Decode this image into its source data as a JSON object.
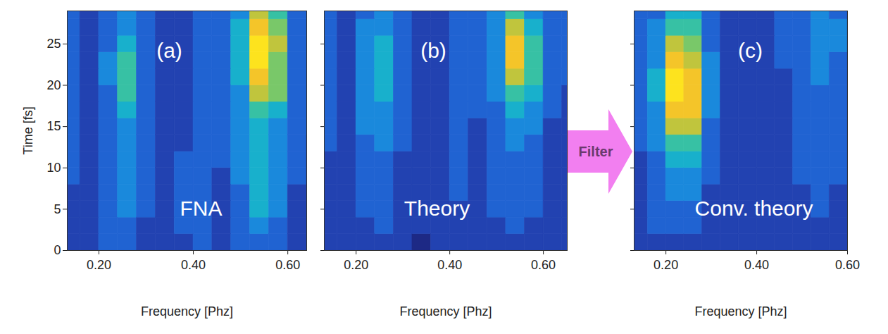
{
  "arrow_label": "Filter",
  "chart_data": [
    {
      "type": "heatmap",
      "panel_label": "(a)",
      "title": "FNA",
      "x_label": "Frequency [Phz]",
      "y_label": "Time [fs]",
      "xlim": [
        0.133,
        0.64
      ],
      "ylim": [
        0,
        29
      ],
      "xticks": [
        0.2,
        0.4,
        0.6
      ],
      "yticks": [
        0,
        5,
        10,
        15,
        20,
        25
      ],
      "tick_labels": true,
      "color_range": [
        0,
        10
      ],
      "x_edges": [
        0.12,
        0.16,
        0.2,
        0.24,
        0.28,
        0.32,
        0.36,
        0.4,
        0.44,
        0.48,
        0.52,
        0.56,
        0.6,
        0.64,
        0.68
      ],
      "y_edges": [
        0,
        2,
        4,
        6,
        8,
        10,
        12,
        14,
        16,
        18,
        20,
        22,
        24,
        26,
        28,
        30
      ],
      "cells": [
        [
          2,
          2,
          3,
          3,
          2,
          2,
          2,
          3,
          2,
          3,
          3,
          3,
          2,
          2
        ],
        [
          2,
          2,
          3,
          3,
          2,
          2,
          3,
          3,
          2,
          3,
          4,
          3,
          2,
          2
        ],
        [
          2,
          2,
          3,
          4,
          3,
          2,
          3,
          3,
          2,
          3,
          5,
          4,
          2,
          2
        ],
        [
          2,
          2,
          3,
          4,
          3,
          2,
          3,
          3,
          2,
          3,
          5,
          4,
          2,
          2
        ],
        [
          3,
          2,
          3,
          4,
          3,
          2,
          3,
          3,
          2,
          4,
          5,
          4,
          3,
          2
        ],
        [
          3,
          2,
          3,
          4,
          3,
          2,
          3,
          3,
          3,
          4,
          5,
          4,
          3,
          2
        ],
        [
          3,
          2,
          3,
          4,
          3,
          2,
          2,
          3,
          3,
          4,
          5,
          4,
          3,
          2
        ],
        [
          3,
          2,
          3,
          4,
          3,
          2,
          2,
          3,
          3,
          4,
          5,
          4,
          3,
          3
        ],
        [
          3,
          2,
          3,
          5,
          3,
          2,
          2,
          3,
          3,
          4,
          6,
          5,
          3,
          3
        ],
        [
          3,
          2,
          3,
          6,
          3,
          2,
          2,
          3,
          3,
          4,
          8,
          7,
          3,
          3
        ],
        [
          3,
          2,
          4,
          6,
          3,
          2,
          2,
          3,
          3,
          5,
          9,
          7,
          3,
          3
        ],
        [
          3,
          2,
          4,
          6,
          3,
          2,
          2,
          3,
          3,
          5,
          10,
          7,
          3,
          3
        ],
        [
          3,
          2,
          3,
          5,
          3,
          2,
          2,
          3,
          3,
          5,
          10,
          8,
          3,
          3
        ],
        [
          3,
          2,
          3,
          4,
          3,
          2,
          2,
          3,
          3,
          5,
          9,
          7,
          3,
          3
        ],
        [
          3,
          2,
          3,
          4,
          3,
          2,
          2,
          3,
          3,
          4,
          8,
          6,
          3,
          3
        ]
      ]
    },
    {
      "type": "heatmap",
      "panel_label": "(b)",
      "title": "Theory",
      "x_label": "Frequency [Phz]",
      "xlim": [
        0.132,
        0.651
      ],
      "ylim": [
        0,
        29
      ],
      "xticks": [
        0.2,
        0.4,
        0.6
      ],
      "yticks": [
        0,
        5,
        10,
        15,
        20,
        25
      ],
      "tick_labels": "x",
      "color_range": [
        0,
        10
      ],
      "x_edges": [
        0.12,
        0.16,
        0.2,
        0.24,
        0.28,
        0.32,
        0.36,
        0.4,
        0.44,
        0.48,
        0.52,
        0.56,
        0.6,
        0.64,
        0.68
      ],
      "y_edges": [
        0,
        2,
        4,
        6,
        8,
        10,
        12,
        14,
        16,
        18,
        20,
        22,
        24,
        26,
        28,
        30
      ],
      "cells": [
        [
          2,
          2,
          2,
          2,
          2,
          1,
          2,
          2,
          2,
          2,
          2,
          2,
          2,
          2
        ],
        [
          2,
          2,
          2,
          3,
          2,
          2,
          2,
          2,
          2,
          2,
          3,
          2,
          2,
          2
        ],
        [
          2,
          2,
          3,
          3,
          2,
          2,
          2,
          2,
          2,
          3,
          3,
          3,
          2,
          2
        ],
        [
          2,
          2,
          3,
          3,
          2,
          2,
          2,
          3,
          2,
          3,
          3,
          3,
          2,
          2
        ],
        [
          2,
          2,
          3,
          3,
          2,
          2,
          2,
          3,
          2,
          3,
          3,
          3,
          2,
          2
        ],
        [
          2,
          2,
          3,
          3,
          2,
          2,
          2,
          3,
          2,
          3,
          3,
          3,
          2,
          2
        ],
        [
          3,
          2,
          3,
          4,
          3,
          2,
          2,
          3,
          2,
          3,
          4,
          3,
          2,
          2
        ],
        [
          3,
          2,
          4,
          4,
          3,
          2,
          2,
          3,
          2,
          3,
          4,
          4,
          2,
          2
        ],
        [
          3,
          2,
          4,
          4,
          3,
          2,
          2,
          3,
          3,
          3,
          5,
          4,
          3,
          2
        ],
        [
          3,
          2,
          4,
          5,
          3,
          2,
          2,
          3,
          3,
          4,
          6,
          5,
          3,
          2
        ],
        [
          3,
          2,
          4,
          5,
          3,
          2,
          2,
          3,
          3,
          4,
          8,
          6,
          3,
          3
        ],
        [
          3,
          2,
          4,
          5,
          3,
          2,
          2,
          3,
          3,
          4,
          9,
          6,
          3,
          3
        ],
        [
          3,
          2,
          4,
          5,
          3,
          2,
          2,
          3,
          3,
          4,
          9,
          6,
          3,
          3
        ],
        [
          3,
          2,
          4,
          4,
          3,
          2,
          2,
          3,
          3,
          4,
          8,
          5,
          3,
          3
        ],
        [
          3,
          2,
          3,
          4,
          3,
          2,
          2,
          3,
          3,
          4,
          6,
          4,
          3,
          3
        ]
      ]
    },
    {
      "type": "heatmap",
      "panel_label": "(c)",
      "title": "Conv. theory",
      "x_label": "Frequency [Phz]",
      "xlim": [
        0.13,
        0.6
      ],
      "ylim": [
        0,
        29
      ],
      "xticks": [
        0.2,
        0.4,
        0.6
      ],
      "yticks": [
        0,
        5,
        10,
        15,
        20,
        25
      ],
      "tick_labels": "x",
      "color_range": [
        0,
        10
      ],
      "x_edges": [
        0.12,
        0.16,
        0.2,
        0.24,
        0.28,
        0.32,
        0.36,
        0.4,
        0.44,
        0.48,
        0.52,
        0.56,
        0.6,
        0.64,
        0.68
      ],
      "y_edges": [
        0,
        2,
        4,
        6,
        8,
        10,
        12,
        14,
        16,
        18,
        20,
        22,
        24,
        26,
        28,
        30
      ],
      "cells": [
        [
          2,
          2,
          2,
          2,
          2,
          2,
          2,
          2,
          2,
          2,
          2,
          2,
          2,
          2
        ],
        [
          2,
          3,
          3,
          3,
          2,
          2,
          2,
          2,
          2,
          2,
          2,
          2,
          2,
          2
        ],
        [
          2,
          3,
          3,
          3,
          2,
          2,
          2,
          2,
          2,
          2,
          3,
          2,
          2,
          2
        ],
        [
          2,
          3,
          4,
          4,
          2,
          2,
          2,
          2,
          2,
          2,
          3,
          2,
          2,
          2
        ],
        [
          2,
          3,
          4,
          4,
          3,
          2,
          2,
          2,
          2,
          3,
          3,
          3,
          2,
          2
        ],
        [
          2,
          3,
          5,
          5,
          3,
          2,
          2,
          2,
          2,
          3,
          3,
          3,
          2,
          2
        ],
        [
          3,
          4,
          6,
          6,
          3,
          2,
          2,
          2,
          2,
          3,
          3,
          3,
          2,
          2
        ],
        [
          3,
          4,
          8,
          8,
          3,
          2,
          2,
          2,
          2,
          3,
          3,
          3,
          2,
          2
        ],
        [
          3,
          4,
          9,
          9,
          4,
          2,
          2,
          2,
          2,
          3,
          3,
          3,
          2,
          2
        ],
        [
          3,
          5,
          10,
          9,
          4,
          2,
          2,
          2,
          2,
          3,
          3,
          3,
          2,
          2
        ],
        [
          3,
          5,
          10,
          9,
          4,
          2,
          2,
          2,
          2,
          3,
          4,
          3,
          2,
          2
        ],
        [
          3,
          4,
          9,
          8,
          4,
          2,
          2,
          2,
          3,
          3,
          4,
          3,
          2,
          2
        ],
        [
          3,
          4,
          8,
          7,
          3,
          2,
          2,
          2,
          3,
          3,
          4,
          4,
          2,
          2
        ],
        [
          3,
          4,
          6,
          6,
          3,
          2,
          2,
          2,
          3,
          3,
          4,
          4,
          2,
          2
        ],
        [
          3,
          3,
          5,
          5,
          3,
          2,
          2,
          2,
          3,
          3,
          4,
          3,
          2,
          2
        ]
      ]
    }
  ]
}
